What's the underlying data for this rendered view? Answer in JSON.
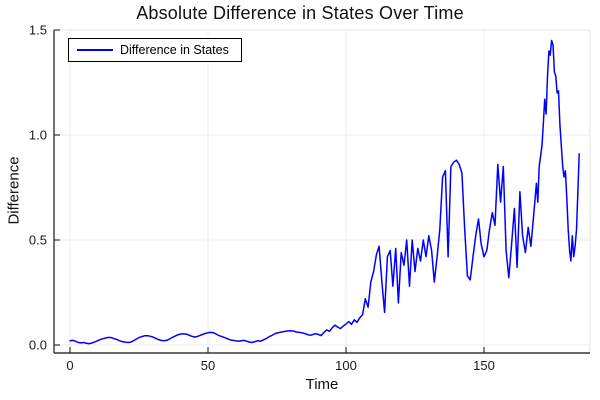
{
  "title": "Absolute Difference in States Over Time",
  "legend": {
    "label": "Difference in States"
  },
  "axes": {
    "x_label": "Time",
    "y_label": "Difference",
    "x_tick_labels": [
      "0",
      "50",
      "100",
      "150"
    ],
    "y_tick_labels": [
      "0.0",
      "0.5",
      "1.0",
      "1.5"
    ]
  },
  "colors": {
    "line": "#0000ff",
    "grid": "#ececec",
    "frame_light": "#e4e4e4",
    "spine": "#36363b",
    "text": "#1a1a1a"
  },
  "chart_data": {
    "type": "line",
    "title": "Absolute Difference in States Over Time",
    "xlabel": "Time",
    "ylabel": "Difference",
    "xlim": [
      -6,
      190
    ],
    "ylim": [
      -0.04,
      1.5
    ],
    "x_ticks": [
      0,
      50,
      100,
      150
    ],
    "y_ticks": [
      0.0,
      0.5,
      1.0,
      1.5
    ],
    "grid": true,
    "legend_position": "top-left",
    "series": [
      {
        "name": "Difference in States",
        "color": "#0000ff",
        "points": [
          [
            0,
            0.02
          ],
          [
            1,
            0.022
          ],
          [
            2,
            0.018
          ],
          [
            3,
            0.012
          ],
          [
            4,
            0.01
          ],
          [
            5,
            0.012
          ],
          [
            6,
            0.008
          ],
          [
            7,
            0.006
          ],
          [
            8,
            0.01
          ],
          [
            9,
            0.015
          ],
          [
            10,
            0.02
          ],
          [
            11,
            0.026
          ],
          [
            12,
            0.03
          ],
          [
            13,
            0.034
          ],
          [
            14,
            0.036
          ],
          [
            15,
            0.035
          ],
          [
            16,
            0.03
          ],
          [
            17,
            0.026
          ],
          [
            18,
            0.02
          ],
          [
            19,
            0.016
          ],
          [
            20,
            0.014
          ],
          [
            21,
            0.012
          ],
          [
            22,
            0.014
          ],
          [
            23,
            0.02
          ],
          [
            24,
            0.028
          ],
          [
            25,
            0.035
          ],
          [
            26,
            0.04
          ],
          [
            27,
            0.044
          ],
          [
            28,
            0.045
          ],
          [
            29,
            0.042
          ],
          [
            30,
            0.038
          ],
          [
            31,
            0.032
          ],
          [
            32,
            0.026
          ],
          [
            33,
            0.022
          ],
          [
            34,
            0.02
          ],
          [
            35,
            0.022
          ],
          [
            36,
            0.028
          ],
          [
            37,
            0.035
          ],
          [
            38,
            0.042
          ],
          [
            39,
            0.048
          ],
          [
            40,
            0.052
          ],
          [
            41,
            0.054
          ],
          [
            42,
            0.052
          ],
          [
            43,
            0.048
          ],
          [
            44,
            0.042
          ],
          [
            45,
            0.038
          ],
          [
            46,
            0.04
          ],
          [
            47,
            0.045
          ],
          [
            48,
            0.05
          ],
          [
            49,
            0.055
          ],
          [
            50,
            0.058
          ],
          [
            51,
            0.06
          ],
          [
            52,
            0.058
          ],
          [
            53,
            0.052
          ],
          [
            54,
            0.045
          ],
          [
            55,
            0.04
          ],
          [
            56,
            0.035
          ],
          [
            57,
            0.03
          ],
          [
            58,
            0.025
          ],
          [
            59,
            0.022
          ],
          [
            60,
            0.02
          ],
          [
            61,
            0.018
          ],
          [
            62,
            0.02
          ],
          [
            63,
            0.022
          ],
          [
            64,
            0.018
          ],
          [
            65,
            0.014
          ],
          [
            66,
            0.012
          ],
          [
            67,
            0.016
          ],
          [
            68,
            0.02
          ],
          [
            69,
            0.018
          ],
          [
            70,
            0.024
          ],
          [
            71,
            0.03
          ],
          [
            72,
            0.038
          ],
          [
            73,
            0.045
          ],
          [
            74,
            0.052
          ],
          [
            75,
            0.057
          ],
          [
            76,
            0.06
          ],
          [
            77,
            0.063
          ],
          [
            78,
            0.065
          ],
          [
            79,
            0.067
          ],
          [
            80,
            0.068
          ],
          [
            81,
            0.066
          ],
          [
            82,
            0.062
          ],
          [
            83,
            0.06
          ],
          [
            84,
            0.058
          ],
          [
            85,
            0.055
          ],
          [
            86,
            0.05
          ],
          [
            87,
            0.046
          ],
          [
            88,
            0.05
          ],
          [
            89,
            0.054
          ],
          [
            90,
            0.05
          ],
          [
            91,
            0.045
          ],
          [
            92,
            0.06
          ],
          [
            93,
            0.072
          ],
          [
            94,
            0.065
          ],
          [
            95,
            0.082
          ],
          [
            96,
            0.095
          ],
          [
            97,
            0.085
          ],
          [
            98,
            0.078
          ],
          [
            99,
            0.09
          ],
          [
            100,
            0.1
          ],
          [
            101,
            0.112
          ],
          [
            102,
            0.098
          ],
          [
            103,
            0.12
          ],
          [
            104,
            0.108
          ],
          [
            105,
            0.13
          ],
          [
            106,
            0.145
          ],
          [
            107,
            0.22
          ],
          [
            108,
            0.18
          ],
          [
            109,
            0.3
          ],
          [
            110,
            0.35
          ],
          [
            111,
            0.43
          ],
          [
            112,
            0.47
          ],
          [
            113,
            0.3
          ],
          [
            114,
            0.155
          ],
          [
            115,
            0.42
          ],
          [
            116,
            0.45
          ],
          [
            117,
            0.28
          ],
          [
            118,
            0.46
          ],
          [
            119,
            0.2
          ],
          [
            120,
            0.44
          ],
          [
            121,
            0.38
          ],
          [
            122,
            0.5
          ],
          [
            123,
            0.28
          ],
          [
            124,
            0.5
          ],
          [
            125,
            0.35
          ],
          [
            126,
            0.46
          ],
          [
            127,
            0.4
          ],
          [
            128,
            0.5
          ],
          [
            129,
            0.42
          ],
          [
            130,
            0.52
          ],
          [
            131,
            0.45
          ],
          [
            132,
            0.3
          ],
          [
            133,
            0.42
          ],
          [
            134,
            0.55
          ],
          [
            135,
            0.8
          ],
          [
            136,
            0.83
          ],
          [
            137,
            0.42
          ],
          [
            138,
            0.85
          ],
          [
            139,
            0.87
          ],
          [
            140,
            0.88
          ],
          [
            141,
            0.86
          ],
          [
            142,
            0.82
          ],
          [
            143,
            0.55
          ],
          [
            144,
            0.33
          ],
          [
            145,
            0.31
          ],
          [
            146,
            0.42
          ],
          [
            147,
            0.52
          ],
          [
            148,
            0.6
          ],
          [
            149,
            0.48
          ],
          [
            150,
            0.42
          ],
          [
            151,
            0.45
          ],
          [
            152,
            0.55
          ],
          [
            153,
            0.63
          ],
          [
            154,
            0.57
          ],
          [
            155,
            0.86
          ],
          [
            156,
            0.68
          ],
          [
            157,
            0.85
          ],
          [
            158,
            0.45
          ],
          [
            159,
            0.32
          ],
          [
            160,
            0.48
          ],
          [
            161,
            0.65
          ],
          [
            162,
            0.37
          ],
          [
            163,
            0.73
          ],
          [
            164,
            0.52
          ],
          [
            165,
            0.44
          ],
          [
            166,
            0.56
          ],
          [
            167,
            0.47
          ],
          [
            168,
            0.62
          ],
          [
            169,
            0.77
          ],
          [
            169.5,
            0.68
          ],
          [
            170,
            0.85
          ],
          [
            171,
            0.95
          ],
          [
            171.5,
            1.05
          ],
          [
            172,
            1.17
          ],
          [
            172.5,
            1.1
          ],
          [
            173,
            1.28
          ],
          [
            173.5,
            1.4
          ],
          [
            174,
            1.38
          ],
          [
            174.5,
            1.45
          ],
          [
            175,
            1.43
          ],
          [
            175.5,
            1.3
          ],
          [
            176,
            1.28
          ],
          [
            176.5,
            1.2
          ],
          [
            177,
            1.21
          ],
          [
            177.5,
            1.05
          ],
          [
            178,
            0.95
          ],
          [
            178.5,
            0.85
          ],
          [
            179,
            0.8
          ],
          [
            179.5,
            0.83
          ],
          [
            180,
            0.7
          ],
          [
            180.5,
            0.55
          ],
          [
            181,
            0.45
          ],
          [
            181.5,
            0.4
          ],
          [
            182,
            0.52
          ],
          [
            182.5,
            0.42
          ],
          [
            183,
            0.47
          ],
          [
            183.5,
            0.55
          ],
          [
            184,
            0.72
          ],
          [
            184.5,
            0.91
          ]
        ]
      }
    ]
  }
}
